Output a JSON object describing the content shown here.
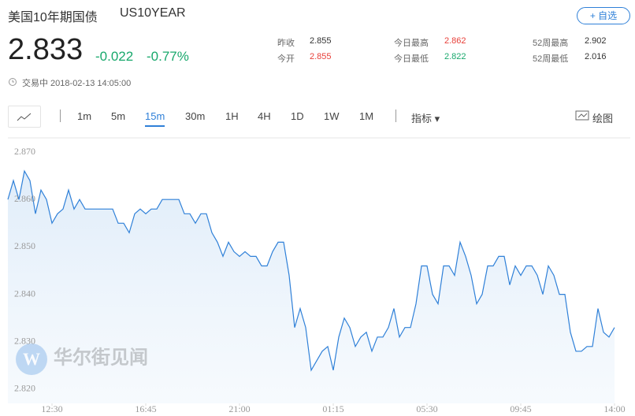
{
  "header": {
    "title": "美国10年期国债",
    "code": "US10YEAR",
    "watch_button": "+ 自选",
    "price": "2.833",
    "change": "-0.022",
    "change_pct": "-0.77%",
    "status": "交易中 2018-02-13 14:05:00",
    "stats": [
      {
        "label": "昨收",
        "value": "2.855",
        "color": "#333333"
      },
      {
        "label": "今开",
        "value": "2.855",
        "color": "#e8403a"
      },
      {
        "label": "今日最高",
        "value": "2.862",
        "color": "#e8403a"
      },
      {
        "label": "今日最低",
        "value": "2.822",
        "color": "#18a86c"
      },
      {
        "label": "52周最高",
        "value": "2.902",
        "color": "#333333"
      },
      {
        "label": "52周最低",
        "value": "2.016",
        "color": "#333333"
      }
    ]
  },
  "toolbar": {
    "tabs": [
      "1m",
      "5m",
      "15m",
      "30m",
      "1H",
      "4H",
      "1D",
      "1W",
      "1M"
    ],
    "active_tab": 2,
    "indicator": "指标",
    "draw": "绘图"
  },
  "watermark": "华尔街见闻",
  "chart_data": {
    "type": "area",
    "color": "#2f80d8",
    "categories": [
      null,
      null,
      null,
      null,
      null,
      null,
      null,
      null,
      "12:30",
      null,
      null,
      null,
      null,
      null,
      null,
      null,
      null,
      null,
      null,
      null,
      null,
      null,
      null,
      null,
      null,
      "16:45",
      null,
      null,
      null,
      null,
      null,
      null,
      null,
      null,
      null,
      null,
      null,
      null,
      null,
      null,
      null,
      null,
      "21:00",
      null,
      null,
      null,
      null,
      null,
      null,
      null,
      null,
      null,
      null,
      null,
      null,
      null,
      null,
      null,
      null,
      "01:15",
      null,
      null,
      null,
      null,
      null,
      null,
      null,
      null,
      null,
      null,
      null,
      null,
      null,
      null,
      null,
      null,
      "05:30",
      null,
      null,
      null,
      null,
      null,
      null,
      null,
      null,
      null,
      null,
      null,
      null,
      null,
      null,
      null,
      null,
      "09:45",
      null,
      null,
      null,
      null,
      null,
      null,
      null,
      null,
      null,
      null,
      null,
      null,
      null,
      null,
      null,
      null,
      "14:00"
    ],
    "values": [
      2.86,
      2.864,
      2.86,
      2.866,
      2.864,
      2.857,
      2.862,
      2.86,
      2.855,
      2.857,
      2.858,
      2.862,
      2.858,
      2.86,
      2.858,
      2.858,
      2.858,
      2.858,
      2.858,
      2.858,
      2.855,
      2.855,
      2.853,
      2.857,
      2.858,
      2.857,
      2.858,
      2.858,
      2.86,
      2.86,
      2.86,
      2.86,
      2.857,
      2.857,
      2.855,
      2.857,
      2.857,
      2.853,
      2.851,
      2.848,
      2.851,
      2.849,
      2.848,
      2.849,
      2.848,
      2.848,
      2.846,
      2.846,
      2.849,
      2.851,
      2.851,
      2.844,
      2.833,
      2.837,
      2.833,
      2.824,
      2.826,
      2.828,
      2.829,
      2.824,
      2.831,
      2.835,
      2.833,
      2.829,
      2.831,
      2.832,
      2.828,
      2.831,
      2.831,
      2.833,
      2.837,
      2.831,
      2.833,
      2.833,
      2.838,
      2.846,
      2.846,
      2.84,
      2.838,
      2.846,
      2.846,
      2.844,
      2.851,
      2.848,
      2.844,
      2.838,
      2.84,
      2.846,
      2.846,
      2.848,
      2.848,
      2.842,
      2.846,
      2.844,
      2.846,
      2.846,
      2.844,
      2.84,
      2.846,
      2.844,
      2.84,
      2.84,
      2.832,
      2.828,
      2.828,
      2.829,
      2.829,
      2.837,
      2.832,
      2.831,
      2.833
    ],
    "ylim": [
      2.817,
      2.873
    ],
    "yticks": [
      {
        "value": 2.87,
        "label": "2.870"
      },
      {
        "value": 2.86,
        "label": "2.860"
      },
      {
        "value": 2.85,
        "label": "2.850"
      },
      {
        "value": 2.84,
        "label": "2.840"
      },
      {
        "value": 2.83,
        "label": "2.830"
      },
      {
        "value": 2.82,
        "label": "2.820"
      }
    ],
    "grid": false
  }
}
